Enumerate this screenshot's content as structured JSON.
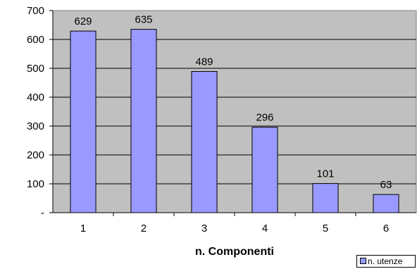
{
  "chart_data": {
    "type": "bar",
    "categories": [
      "1",
      "2",
      "3",
      "4",
      "5",
      "6"
    ],
    "series": [
      {
        "name": "n. utenze",
        "values": [
          629,
          635,
          489,
          296,
          101,
          63
        ]
      }
    ],
    "data_labels": [
      "629",
      "635",
      "489",
      "296",
      "101",
      "63"
    ],
    "y_tick_labels": [
      "-",
      "100",
      "200",
      "300",
      "400",
      "500",
      "600",
      "700"
    ],
    "xlabel": "n. Componenti",
    "ylabel": "",
    "ylim": [
      0,
      700
    ],
    "grid": "horizontal",
    "legend_position": "bottom-right",
    "colors": {
      "bar": "#9999ff",
      "plot_bg": "#c0c0c0",
      "bar_edge": "#000000"
    }
  }
}
